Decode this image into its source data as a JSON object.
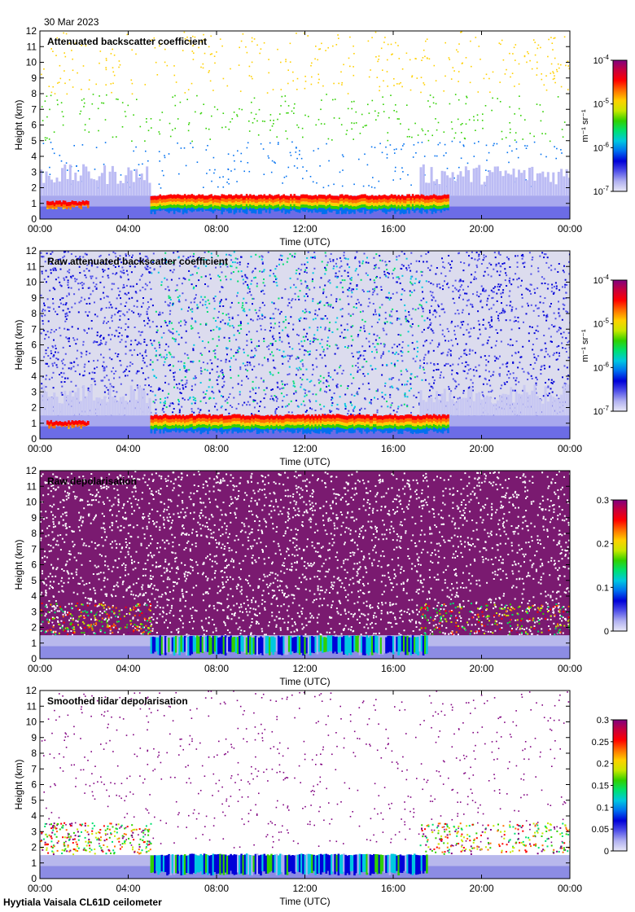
{
  "date": "30 Mar 2023",
  "footer": "Hyytiala Vaisala CL61D ceilometer",
  "colors": [
    "#e8e8f8",
    "#b0b0f0",
    "#5050e8",
    "#0000d8",
    "#0070f0",
    "#00c8e0",
    "#00e070",
    "#30d000",
    "#c8e800",
    "#ffd000",
    "#ff7000",
    "#ff0000",
    "#c8003c",
    "#800080"
  ],
  "chart_data": [
    {
      "type": "heatmap",
      "title": "Attenuated backscatter coefficient",
      "xlabel": "Time (UTC)",
      "ylabel": "Height (km)",
      "xlim": [
        0,
        24
      ],
      "ylim": [
        0,
        12
      ],
      "xticks": [
        "00:00",
        "04:00",
        "08:00",
        "12:00",
        "16:00",
        "20:00",
        "00:00"
      ],
      "yticks": [
        "0",
        "1",
        "2",
        "3",
        "4",
        "5",
        "6",
        "7",
        "8",
        "9",
        "10",
        "11",
        "12"
      ],
      "colorbar": {
        "scale": "log",
        "min": 1e-07,
        "max": 0.0001,
        "labels": [
          {
            "base": "10",
            "exp": "-7"
          },
          {
            "base": "10",
            "exp": "-6"
          },
          {
            "base": "10",
            "exp": "-5"
          },
          {
            "base": "10",
            "exp": "-4"
          }
        ],
        "unit": "m⁻¹ sr⁻¹"
      },
      "cloud_layers": [
        {
          "start": 0.3,
          "end": 2.2,
          "base_km": 0.6,
          "top_km": 1.2
        },
        {
          "start": 5.0,
          "end": 18.5,
          "base_km": 0.3,
          "top_km": 1.6
        }
      ]
    },
    {
      "type": "heatmap",
      "title": "Raw attenuated backscatter coefficient",
      "xlabel": "Time (UTC)",
      "ylabel": "Height (km)",
      "xlim": [
        0,
        24
      ],
      "ylim": [
        0,
        12
      ],
      "xticks": [
        "00:00",
        "04:00",
        "08:00",
        "12:00",
        "16:00",
        "20:00",
        "00:00"
      ],
      "yticks": [
        "0",
        "1",
        "2",
        "3",
        "4",
        "5",
        "6",
        "7",
        "8",
        "9",
        "10",
        "11",
        "12"
      ],
      "colorbar": {
        "scale": "log",
        "min": 1e-07,
        "max": 0.0001,
        "labels": [
          {
            "base": "10",
            "exp": "-7"
          },
          {
            "base": "10",
            "exp": "-6"
          },
          {
            "base": "10",
            "exp": "-5"
          },
          {
            "base": "10",
            "exp": "-4"
          }
        ],
        "unit": "m⁻¹ sr⁻¹"
      },
      "cloud_layers": [
        {
          "start": 0.3,
          "end": 2.2,
          "base_km": 0.6,
          "top_km": 1.2
        },
        {
          "start": 5.0,
          "end": 18.5,
          "base_km": 0.3,
          "top_km": 1.6
        }
      ]
    },
    {
      "type": "heatmap",
      "title": "Raw depolarisation",
      "xlabel": "Time (UTC)",
      "ylabel": "Height (km)",
      "xlim": [
        0,
        24
      ],
      "ylim": [
        0,
        12
      ],
      "xticks": [
        "00:00",
        "04:00",
        "08:00",
        "12:00",
        "16:00",
        "20:00",
        "00:00"
      ],
      "yticks": [
        "0",
        "1",
        "2",
        "3",
        "4",
        "5",
        "6",
        "7",
        "8",
        "9",
        "10",
        "11",
        "12"
      ],
      "colorbar": {
        "scale": "linear",
        "min": 0,
        "max": 0.3,
        "labels": [
          "0",
          "0.1",
          "0.2",
          "0.3"
        ]
      },
      "cloud_layers": [
        {
          "start": 5.0,
          "end": 17.5,
          "base_km": 0.2,
          "top_km": 1.5
        }
      ]
    },
    {
      "type": "heatmap",
      "title": "Smoothed lidar depolarisation",
      "xlabel": "Time (UTC)",
      "ylabel": "Height (km)",
      "xlim": [
        0,
        24
      ],
      "ylim": [
        0,
        12
      ],
      "xticks": [
        "00:00",
        "04:00",
        "08:00",
        "12:00",
        "16:00",
        "20:00",
        "00:00"
      ],
      "yticks": [
        "0",
        "1",
        "2",
        "3",
        "4",
        "5",
        "6",
        "7",
        "8",
        "9",
        "10",
        "11",
        "12"
      ],
      "colorbar": {
        "scale": "linear",
        "min": 0,
        "max": 0.3,
        "labels": [
          "0",
          "0.05",
          "0.1",
          "0.15",
          "0.2",
          "0.25",
          "0.3"
        ]
      },
      "cloud_layers": [
        {
          "start": 5.0,
          "end": 17.5,
          "base_km": 0.2,
          "top_km": 1.6
        }
      ]
    }
  ]
}
